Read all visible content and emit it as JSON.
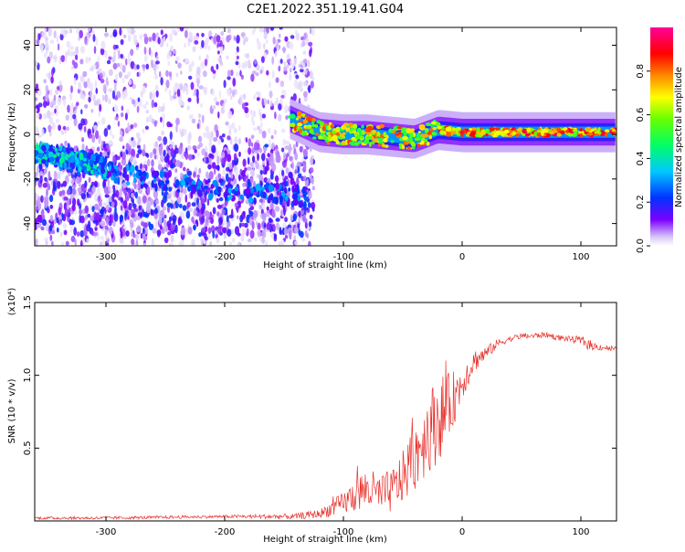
{
  "title": "C2E1.2022.351.19.41.G04",
  "chart_data": [
    {
      "type": "heatmap",
      "xlabel": "Height of straight line (km)",
      "ylabel": "Frequency (Hz)",
      "xlim": [
        -360,
        130
      ],
      "ylim": [
        -50,
        48
      ],
      "xticks": [
        -300,
        -200,
        -100,
        0,
        100
      ],
      "xtick_labels": [
        "-300",
        "-200",
        "-100",
        "0",
        "100"
      ],
      "yticks": [
        -40,
        -20,
        0,
        20,
        40
      ],
      "ytick_labels": [
        "-40",
        "-20",
        "0",
        "20",
        "40"
      ],
      "colorbar": {
        "label": "Normalized spectral amplitude",
        "range": [
          0,
          1
        ],
        "ticks": [
          0.0,
          0.2,
          0.4,
          0.6,
          0.8
        ],
        "tick_labels": [
          "0.0",
          "0.2",
          "0.4",
          "0.6",
          "0.8"
        ],
        "colormap": "rainbow (white → purple → blue → cyan → green → yellow → red → magenta)"
      },
      "features": [
        {
          "name": "scattered noise",
          "x_range": [
            -360,
            -125
          ],
          "y_range": [
            -50,
            48
          ],
          "amplitude": 0.1
        },
        {
          "name": "lower ridge",
          "x": [
            -360,
            -300,
            -250,
            -200,
            -150,
            -130
          ],
          "y": [
            -8,
            -16,
            -22,
            -25,
            -27,
            -28
          ],
          "amplitude": 0.3
        },
        {
          "name": "upper ridge",
          "x": [
            -360,
            -320,
            -300
          ],
          "y": [
            -8,
            -12,
            -15
          ],
          "amplitude": 0.4
        },
        {
          "name": "central band",
          "x": [
            -145,
            -120,
            -100,
            -80,
            -60,
            -40,
            -20,
            0,
            50,
            130
          ],
          "y": [
            7,
            1,
            0,
            0,
            -1,
            -2,
            2,
            1,
            1,
            1
          ],
          "amplitude": 0.75
        }
      ],
      "grid": false
    },
    {
      "type": "line",
      "xlabel": "Height of straight line (km)",
      "ylabel": "SNR (10 * v/v)",
      "y_multiplier": "(x10⁴)",
      "xlim": [
        -360,
        130
      ],
      "ylim": [
        0,
        1.5
      ],
      "xticks": [
        -300,
        -200,
        -100,
        0,
        100
      ],
      "xtick_labels": [
        "-300",
        "-200",
        "-100",
        "0",
        "100"
      ],
      "yticks": [
        0.5,
        1.0,
        1.5
      ],
      "ytick_labels": [
        "0.5",
        "1.0",
        "1.5"
      ],
      "color": "#e8312c",
      "x": [
        -360,
        -300,
        -200,
        -140,
        -120,
        -100,
        -90,
        -80,
        -70,
        -60,
        -50,
        -40,
        -30,
        -20,
        -10,
        0,
        10,
        20,
        30,
        40,
        50,
        60,
        70,
        80,
        90,
        100,
        105,
        110,
        120,
        130
      ],
      "y": [
        0.02,
        0.02,
        0.03,
        0.03,
        0.05,
        0.12,
        0.18,
        0.22,
        0.18,
        0.2,
        0.3,
        0.45,
        0.6,
        0.7,
        0.8,
        0.95,
        1.1,
        1.15,
        1.22,
        1.25,
        1.27,
        1.27,
        1.28,
        1.26,
        1.25,
        1.24,
        1.22,
        1.2,
        1.19,
        1.18
      ],
      "noise_amplitude": [
        0.01,
        0.01,
        0.01,
        0.02,
        0.03,
        0.08,
        0.12,
        0.15,
        0.14,
        0.15,
        0.18,
        0.25,
        0.28,
        0.3,
        0.22,
        0.12,
        0.08,
        0.05,
        0.03,
        0.02,
        0.02,
        0.02,
        0.02,
        0.02,
        0.02,
        0.03,
        0.04,
        0.03,
        0.02,
        0.02
      ],
      "grid": false
    }
  ]
}
